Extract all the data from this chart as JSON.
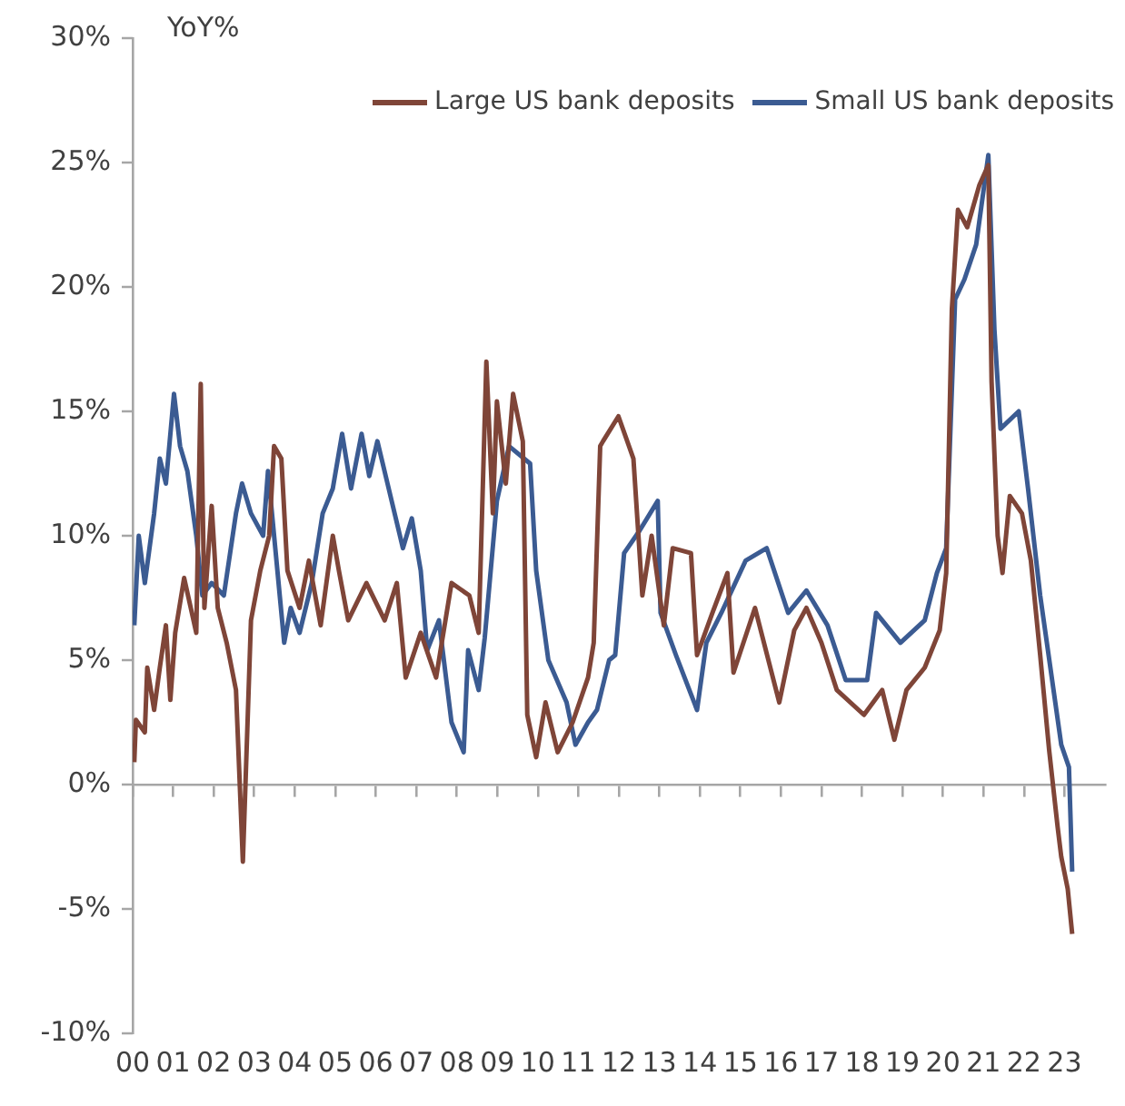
{
  "chart_data": {
    "type": "line",
    "ylabel": "YoY%",
    "legend": "top right",
    "marker": "none",
    "line_style": "solid",
    "xlim": [
      2000,
      2024
    ],
    "xticks": [
      {
        "value": 2000,
        "label": "00"
      },
      {
        "value": 2001,
        "label": "01"
      },
      {
        "value": 2002,
        "label": "02"
      },
      {
        "value": 2003,
        "label": "03"
      },
      {
        "value": 2004,
        "label": "04"
      },
      {
        "value": 2005,
        "label": "05"
      },
      {
        "value": 2006,
        "label": "06"
      },
      {
        "value": 2007,
        "label": "07"
      },
      {
        "value": 2008,
        "label": "08"
      },
      {
        "value": 2009,
        "label": "09"
      },
      {
        "value": 2010,
        "label": "10"
      },
      {
        "value": 2011,
        "label": "11"
      },
      {
        "value": 2012,
        "label": "12"
      },
      {
        "value": 2013,
        "label": "13"
      },
      {
        "value": 2014,
        "label": "14"
      },
      {
        "value": 2015,
        "label": "15"
      },
      {
        "value": 2016,
        "label": "16"
      },
      {
        "value": 2017,
        "label": "17"
      },
      {
        "value": 2018,
        "label": "18"
      },
      {
        "value": 2019,
        "label": "19"
      },
      {
        "value": 2020,
        "label": "20"
      },
      {
        "value": 2021,
        "label": "21"
      },
      {
        "value": 2022,
        "label": "22"
      },
      {
        "value": 2023,
        "label": "23"
      }
    ],
    "ylim": [
      -10,
      30
    ],
    "yticks": [
      {
        "value": -10,
        "label": "-10%"
      },
      {
        "value": -5,
        "label": "-5%"
      },
      {
        "value": 0,
        "label": "0%"
      },
      {
        "value": 5,
        "label": "5%"
      },
      {
        "value": 10,
        "label": "10%"
      },
      {
        "value": 15,
        "label": "15%"
      },
      {
        "value": 20,
        "label": "20%"
      },
      {
        "value": 25,
        "label": "25%"
      },
      {
        "value": 30,
        "label": "30%"
      }
    ],
    "series": [
      {
        "name": "Large US bank deposits",
        "color": "#7f4538",
        "x": [
          2000.04,
          2000.08,
          2000.3,
          2000.36,
          2000.53,
          2000.67,
          2000.82,
          2000.93,
          2001.05,
          2001.27,
          2001.57,
          2001.68,
          2001.77,
          2001.95,
          2002.1,
          2002.32,
          2002.55,
          2002.72,
          2002.92,
          2003.15,
          2003.37,
          2003.49,
          2003.67,
          2003.82,
          2004.12,
          2004.35,
          2004.64,
          2004.94,
          2005.09,
          2005.32,
          2005.77,
          2006.22,
          2006.52,
          2006.74,
          2007.11,
          2007.49,
          2007.87,
          2008.31,
          2008.54,
          2008.73,
          2008.89,
          2008.99,
          2009.21,
          2009.39,
          2009.63,
          2009.74,
          2009.96,
          2010.19,
          2010.49,
          2010.86,
          2011.24,
          2011.38,
          2011.54,
          2011.61,
          2011.99,
          2012.36,
          2012.58,
          2012.81,
          2013.11,
          2013.33,
          2013.78,
          2013.93,
          2014.31,
          2014.68,
          2014.83,
          2015.36,
          2015.96,
          2016.33,
          2016.63,
          2017.0,
          2017.38,
          2018.05,
          2018.5,
          2018.8,
          2019.1,
          2019.55,
          2019.92,
          2020.08,
          2020.22,
          2020.37,
          2020.6,
          2020.9,
          2021.12,
          2021.2,
          2021.35,
          2021.47,
          2021.65,
          2021.95,
          2022.17,
          2022.4,
          2022.62,
          2022.83,
          2022.92,
          2023.08,
          2023.19
        ],
        "values": [
          0.9,
          2.6,
          2.1,
          4.7,
          3.0,
          4.7,
          6.4,
          3.4,
          6.1,
          8.3,
          6.1,
          16.1,
          7.1,
          11.2,
          7.1,
          5.7,
          3.8,
          -3.1,
          6.6,
          8.6,
          10.0,
          13.6,
          13.1,
          8.6,
          7.1,
          9.0,
          6.4,
          10.0,
          8.6,
          6.6,
          8.1,
          6.6,
          8.1,
          4.3,
          6.1,
          4.3,
          8.1,
          7.6,
          6.1,
          17.0,
          10.9,
          15.4,
          12.1,
          15.7,
          13.8,
          2.8,
          1.1,
          3.3,
          1.3,
          2.5,
          4.3,
          5.7,
          13.6,
          13.8,
          14.8,
          13.1,
          7.6,
          10.0,
          6.4,
          9.5,
          9.3,
          5.2,
          6.9,
          8.5,
          4.5,
          7.1,
          3.3,
          6.2,
          7.1,
          5.7,
          3.8,
          2.8,
          3.8,
          1.8,
          3.8,
          4.7,
          6.2,
          8.5,
          19.1,
          23.1,
          22.4,
          24.1,
          24.9,
          16.2,
          10.0,
          8.5,
          11.6,
          10.9,
          9.0,
          5.2,
          1.4,
          -1.7,
          -2.9,
          -4.2,
          -6.0
        ]
      },
      {
        "name": "Small US bank deposits",
        "color": "#3b5b92",
        "x": [
          2000.04,
          2000.15,
          2000.3,
          2000.53,
          2000.67,
          2000.82,
          2001.02,
          2001.17,
          2001.35,
          2001.57,
          2001.72,
          2001.95,
          2002.25,
          2002.55,
          2002.7,
          2002.92,
          2003.22,
          2003.34,
          2003.52,
          2003.74,
          2003.9,
          2004.12,
          2004.42,
          2004.69,
          2004.94,
          2005.17,
          2005.39,
          2005.65,
          2005.84,
          2006.04,
          2006.29,
          2006.67,
          2006.89,
          2007.11,
          2007.27,
          2007.56,
          2007.87,
          2008.17,
          2008.28,
          2008.54,
          2008.69,
          2008.99,
          2009.29,
          2009.81,
          2009.96,
          2010.26,
          2010.71,
          2010.93,
          2011.24,
          2011.46,
          2011.76,
          2011.91,
          2012.13,
          2012.51,
          2012.96,
          2013.03,
          2013.41,
          2013.93,
          2014.16,
          2014.53,
          2015.13,
          2015.65,
          2016.18,
          2016.63,
          2017.15,
          2017.6,
          2018.13,
          2018.35,
          2018.95,
          2019.55,
          2019.85,
          2020.08,
          2020.3,
          2020.53,
          2020.82,
          2021.12,
          2021.27,
          2021.42,
          2021.87,
          2022.1,
          2022.4,
          2022.92,
          2023.11,
          2023.19
        ],
        "values": [
          6.4,
          10.0,
          8.1,
          10.9,
          13.1,
          12.1,
          15.7,
          13.6,
          12.6,
          10.0,
          7.6,
          8.1,
          7.6,
          10.9,
          12.1,
          10.9,
          10.0,
          12.6,
          9.5,
          5.7,
          7.1,
          6.1,
          8.1,
          10.9,
          11.9,
          14.1,
          11.9,
          14.1,
          12.4,
          13.8,
          12.1,
          9.5,
          10.7,
          8.6,
          5.4,
          6.6,
          2.5,
          1.3,
          5.4,
          3.8,
          5.9,
          11.4,
          13.6,
          12.9,
          8.6,
          5.0,
          3.3,
          1.6,
          2.5,
          3.0,
          5.0,
          5.2,
          9.3,
          10.2,
          11.4,
          6.9,
          5.2,
          3.0,
          5.7,
          6.9,
          9.0,
          9.5,
          6.9,
          7.8,
          6.4,
          4.2,
          4.2,
          6.9,
          5.7,
          6.6,
          8.5,
          9.5,
          19.5,
          20.3,
          21.7,
          25.3,
          18.3,
          14.3,
          15.0,
          11.9,
          7.6,
          1.6,
          0.7,
          -3.5
        ]
      }
    ]
  }
}
